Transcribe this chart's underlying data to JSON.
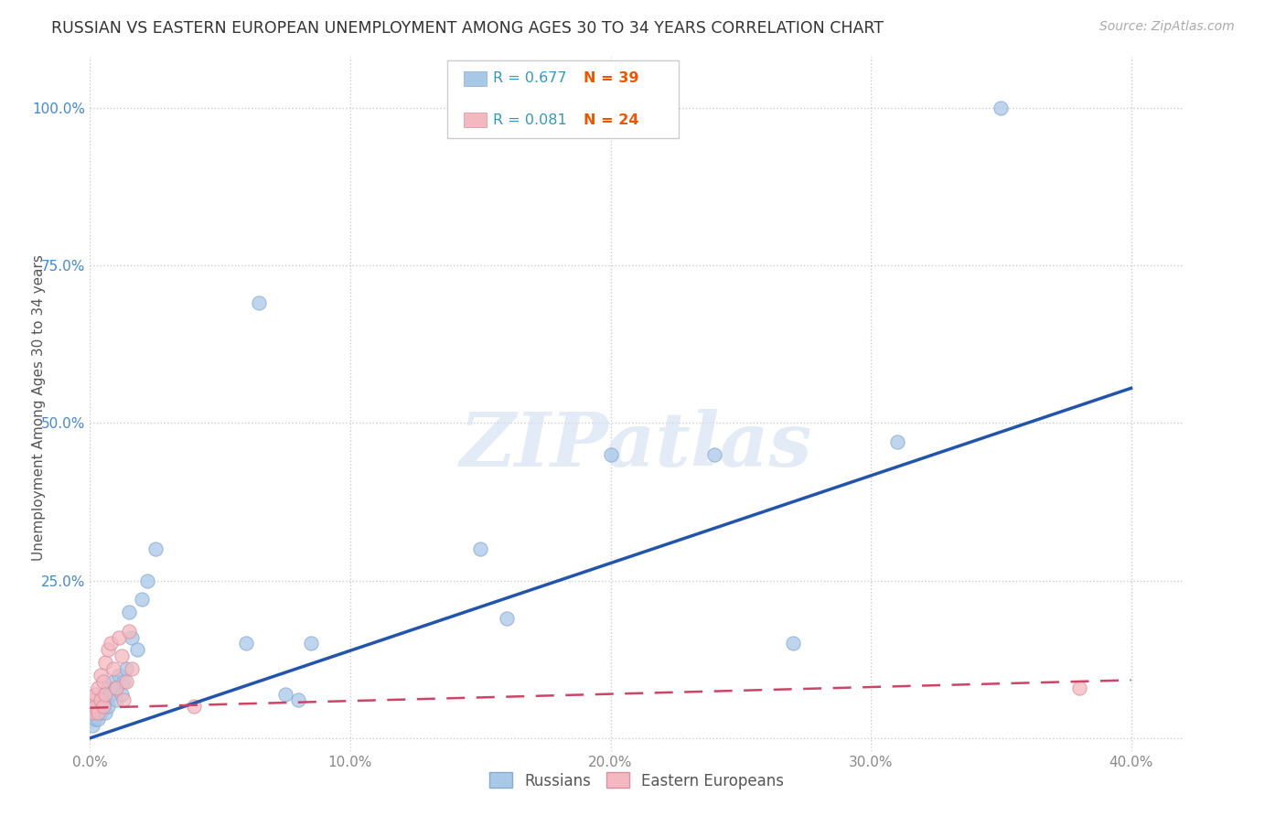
{
  "title": "RUSSIAN VS EASTERN EUROPEAN UNEMPLOYMENT AMONG AGES 30 TO 34 YEARS CORRELATION CHART",
  "source": "Source: ZipAtlas.com",
  "ylabel": "Unemployment Among Ages 30 to 34 years",
  "watermark": "ZIPatlas",
  "xlim": [
    0.0,
    0.42
  ],
  "ylim": [
    -0.02,
    1.08
  ],
  "xticks": [
    0.0,
    0.1,
    0.2,
    0.3,
    0.4
  ],
  "yticks": [
    0.0,
    0.25,
    0.5,
    0.75,
    1.0
  ],
  "xticklabels": [
    "0.0%",
    "10.0%",
    "20.0%",
    "30.0%",
    "40.0%"
  ],
  "yticklabels": [
    "",
    "25.0%",
    "50.0%",
    "75.0%",
    "100.0%"
  ],
  "legend_r1": "R = 0.677",
  "legend_n1": "N = 39",
  "legend_r2": "R = 0.081",
  "legend_n2": "N = 24",
  "color_russian": "#a8c8e8",
  "color_eastern": "#f4b8c0",
  "color_russian_line": "#2255aa",
  "color_eastern_line": "#cc4466",
  "color_ytick": "#4488cc",
  "color_xtick": "#888888",
  "background_color": "#ffffff",
  "grid_color": "#cccccc",
  "russians_x": [
    0.001,
    0.002,
    0.002,
    0.003,
    0.003,
    0.004,
    0.004,
    0.005,
    0.005,
    0.006,
    0.006,
    0.007,
    0.007,
    0.008,
    0.009,
    0.01,
    0.01,
    0.011,
    0.012,
    0.013,
    0.014,
    0.015,
    0.016,
    0.018,
    0.02,
    0.022,
    0.025,
    0.06,
    0.065,
    0.075,
    0.08,
    0.085,
    0.15,
    0.16,
    0.2,
    0.24,
    0.27,
    0.31,
    0.35
  ],
  "russians_y": [
    0.02,
    0.03,
    0.04,
    0.03,
    0.05,
    0.04,
    0.06,
    0.05,
    0.07,
    0.06,
    0.04,
    0.08,
    0.05,
    0.07,
    0.09,
    0.06,
    0.08,
    0.1,
    0.07,
    0.09,
    0.11,
    0.2,
    0.16,
    0.14,
    0.22,
    0.25,
    0.3,
    0.15,
    0.69,
    0.07,
    0.06,
    0.15,
    0.3,
    0.19,
    0.45,
    0.45,
    0.15,
    0.47,
    1.0
  ],
  "eastern_x": [
    0.001,
    0.001,
    0.002,
    0.002,
    0.003,
    0.003,
    0.004,
    0.004,
    0.005,
    0.005,
    0.006,
    0.006,
    0.007,
    0.008,
    0.009,
    0.01,
    0.011,
    0.012,
    0.013,
    0.014,
    0.015,
    0.016,
    0.04,
    0.38
  ],
  "eastern_y": [
    0.04,
    0.06,
    0.05,
    0.07,
    0.04,
    0.08,
    0.06,
    0.1,
    0.05,
    0.09,
    0.12,
    0.07,
    0.14,
    0.15,
    0.11,
    0.08,
    0.16,
    0.13,
    0.06,
    0.09,
    0.17,
    0.11,
    0.05,
    0.08
  ]
}
